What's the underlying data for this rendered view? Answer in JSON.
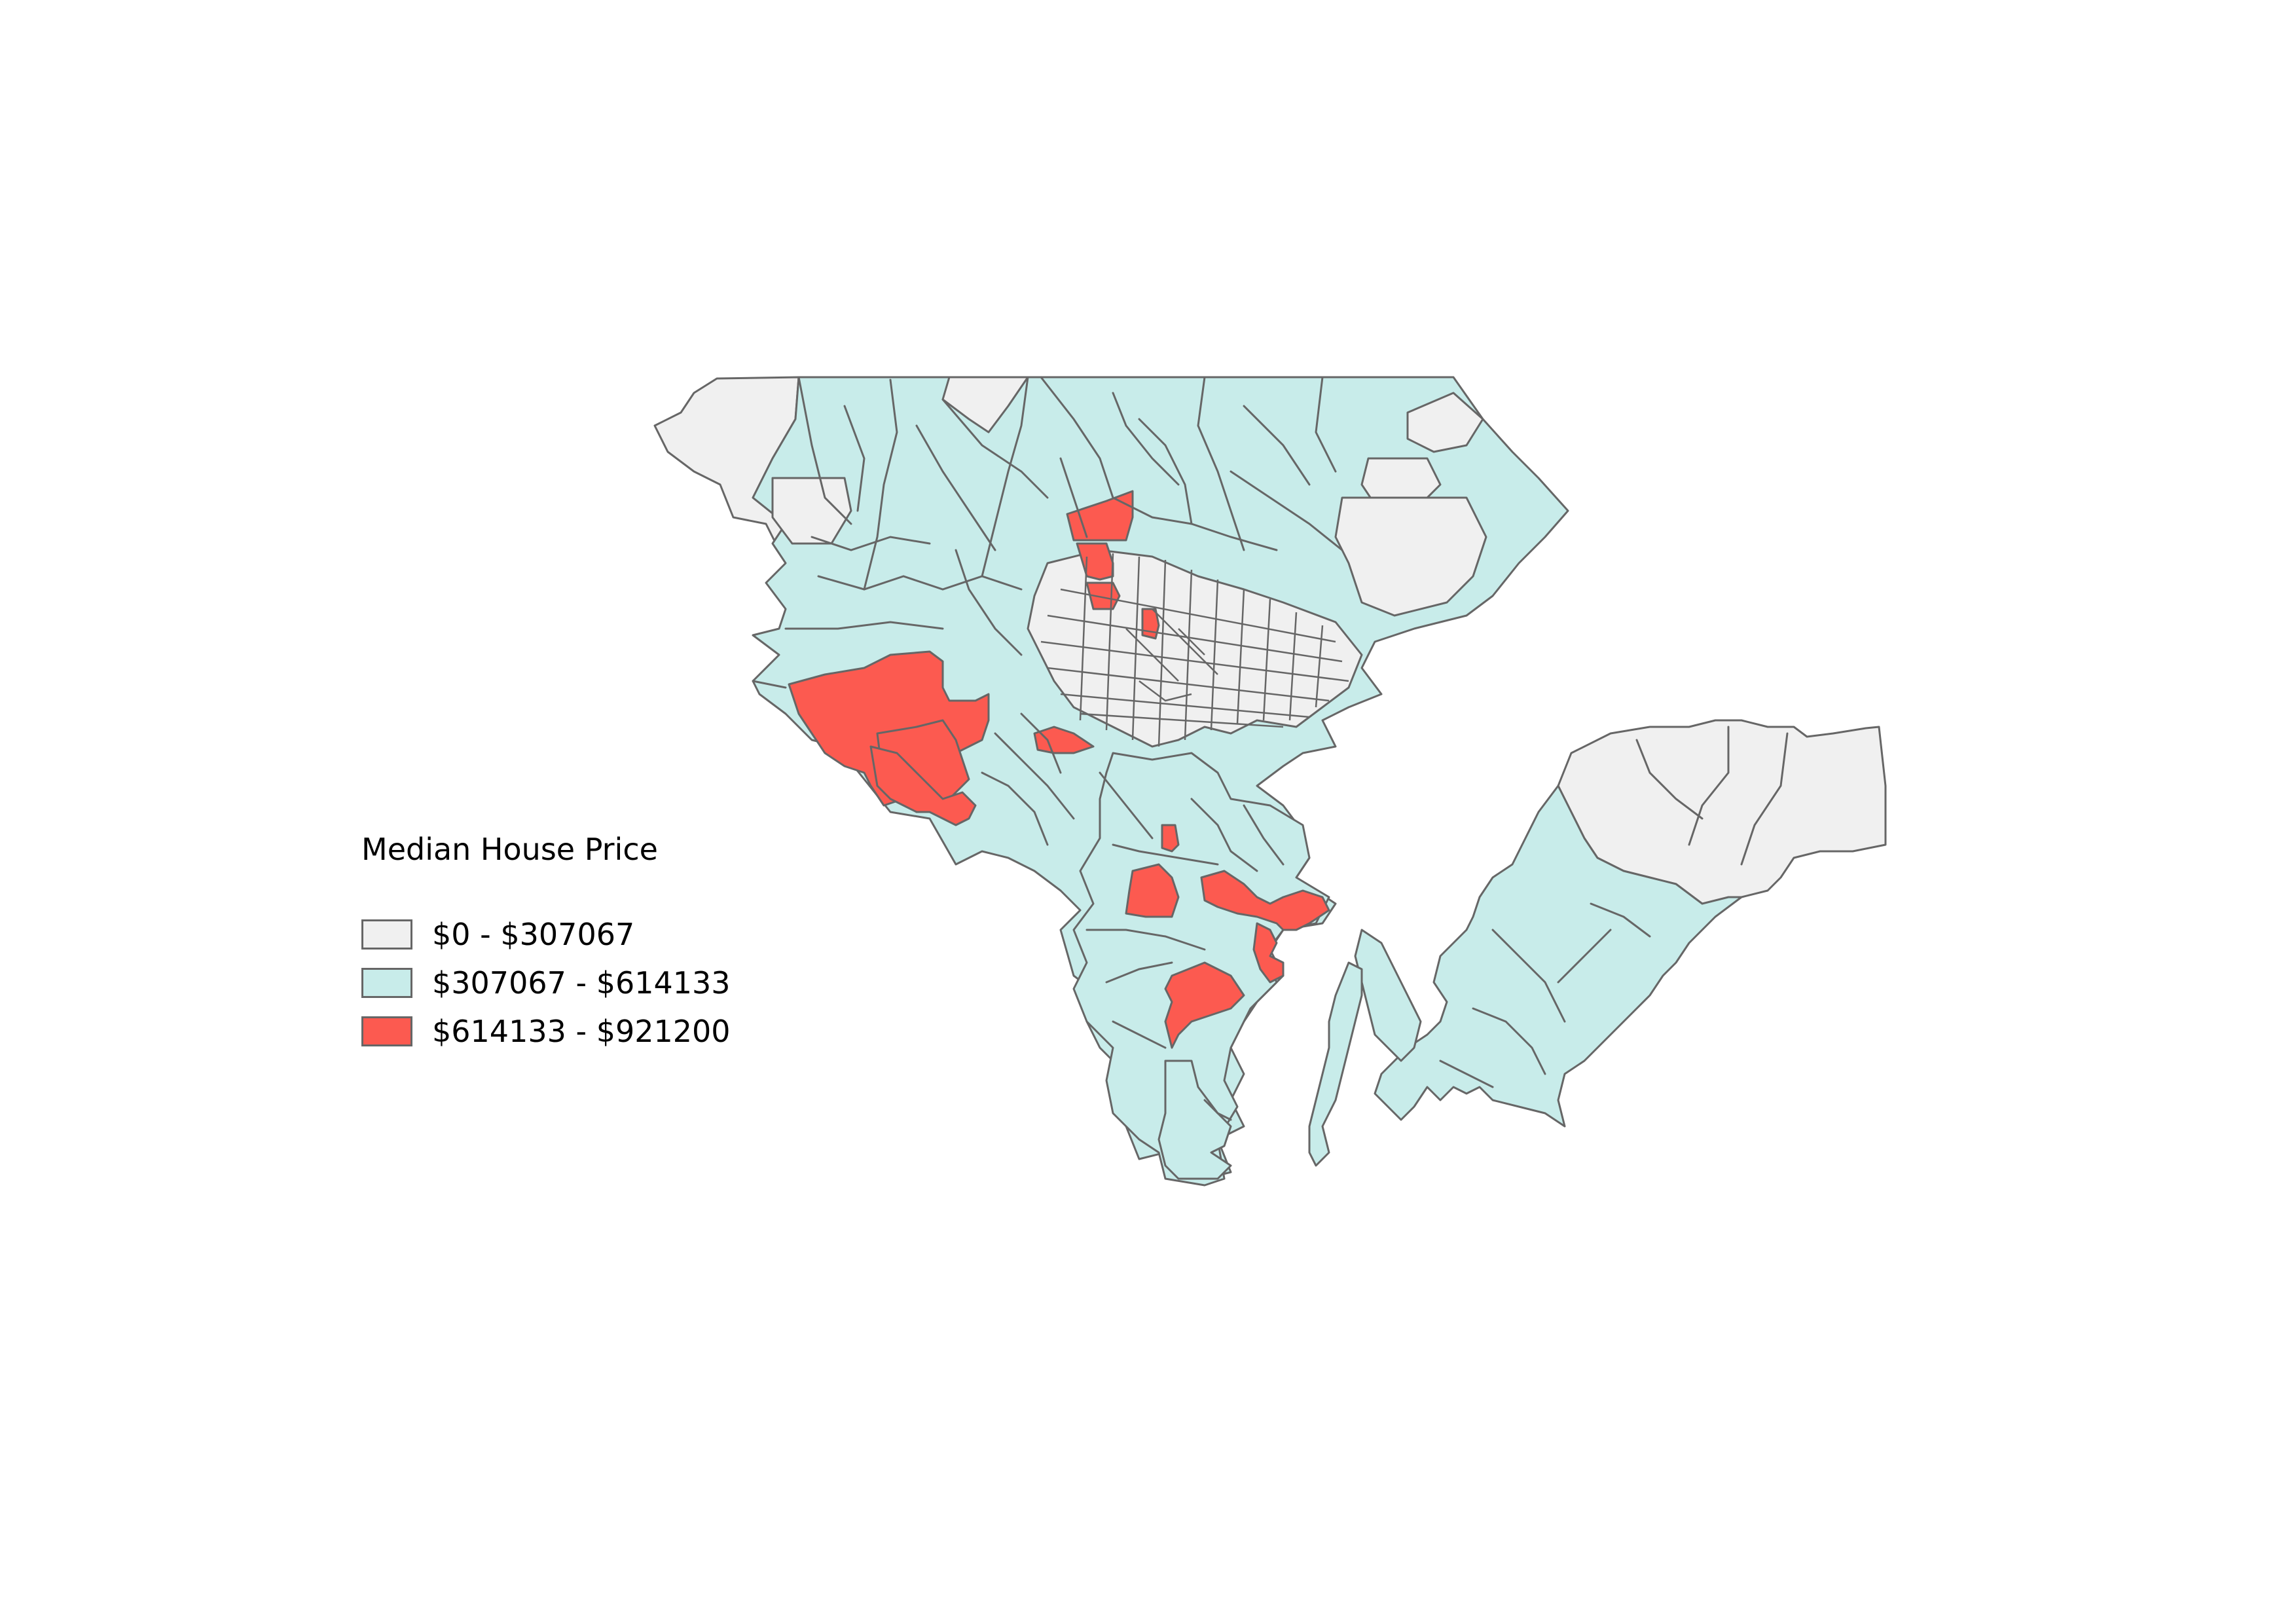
{
  "map": {
    "legend": {
      "title": "Median House Price",
      "classes": [
        {
          "label": "$0 - $307067",
          "color": "#f0f0f0"
        },
        {
          "label": "$307067 - $614133",
          "color": "#c8ecea"
        },
        {
          "label": "$614133 - $921200",
          "color": "#fc5a50"
        }
      ]
    },
    "boundary_color": "#666666"
  }
}
